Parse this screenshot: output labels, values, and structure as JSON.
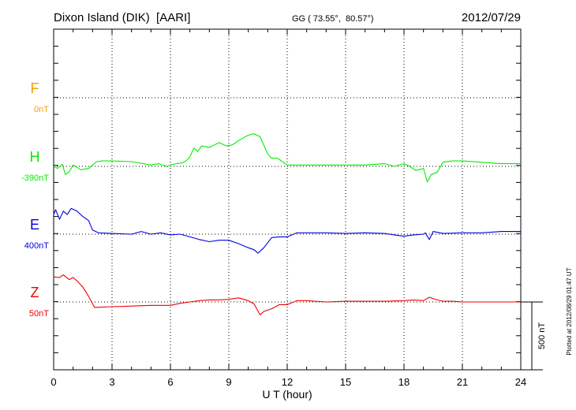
{
  "chart_data": {
    "type": "line",
    "title_left": "Dixon Island (DIK)  [AARI]",
    "title_center": "GG ( 73.55°,  80.57°)",
    "title_right": "2012/07/29",
    "xlabel": "U T (hour)",
    "xlim": [
      0,
      24
    ],
    "xticks": [
      "0",
      "3",
      "6",
      "9",
      "12",
      "15",
      "18",
      "21",
      "24"
    ],
    "grid": true,
    "scale_bar_label": "500 nT",
    "footer": "Plotted at 2012/08/29 01:47 UT",
    "series": [
      {
        "name": "F",
        "offset": "0nT",
        "color": "#f5a000",
        "x": [],
        "y": []
      },
      {
        "name": "H",
        "offset": "-390nT",
        "color": "#00ee00",
        "x": [
          0,
          0.2,
          0.45,
          0.6,
          0.8,
          1.0,
          1.4,
          1.8,
          2.2,
          2.5,
          3.0,
          4.0,
          5.0,
          5.4,
          5.8,
          6.0,
          6.3,
          6.6,
          6.8,
          7.0,
          7.2,
          7.4,
          7.6,
          8.0,
          8.5,
          8.9,
          9.2,
          9.5,
          10.0,
          10.3,
          10.6,
          11.0,
          11.2,
          11.5,
          12.0,
          12.3,
          13.0,
          14.0,
          15.0,
          16.0,
          17.0,
          17.5,
          18.0,
          18.3,
          18.6,
          19.0,
          19.2,
          19.4,
          19.7,
          20.0,
          20.5,
          21.0,
          22.0,
          23.0,
          24.0
        ],
        "y": [
          0,
          -15,
          15,
          -60,
          -40,
          10,
          -25,
          -15,
          35,
          40,
          40,
          35,
          10,
          20,
          0,
          10,
          20,
          25,
          40,
          70,
          135,
          110,
          150,
          140,
          175,
          150,
          160,
          190,
          230,
          240,
          220,
          90,
          60,
          60,
          10,
          10,
          10,
          10,
          10,
          10,
          20,
          0,
          20,
          0,
          -30,
          -15,
          -115,
          -60,
          -45,
          30,
          40,
          40,
          30,
          20,
          20
        ]
      },
      {
        "name": "E",
        "offset": "400nT",
        "color": "#0000dd",
        "x": [
          0,
          0.1,
          0.3,
          0.5,
          0.7,
          0.9,
          1.2,
          1.5,
          1.8,
          2.0,
          2.3,
          3.0,
          4.0,
          4.5,
          5.0,
          5.5,
          6.0,
          6.5,
          7.0,
          7.5,
          8.0,
          8.5,
          9.0,
          9.5,
          10.0,
          10.3,
          10.5,
          10.8,
          11.2,
          11.6,
          12.0,
          12.5,
          13.0,
          14.0,
          15.0,
          16.0,
          17.0,
          17.5,
          18.0,
          18.5,
          19.0,
          19.1,
          19.3,
          19.5,
          20.0,
          21.0,
          22.0,
          23.0,
          24.0
        ],
        "y": [
          145,
          180,
          110,
          170,
          145,
          190,
          170,
          130,
          100,
          30,
          10,
          5,
          0,
          20,
          0,
          10,
          -5,
          0,
          -20,
          -40,
          -55,
          -45,
          -45,
          -70,
          -100,
          -115,
          -140,
          -100,
          -25,
          -20,
          -20,
          10,
          10,
          10,
          5,
          10,
          5,
          -5,
          -15,
          -5,
          0,
          10,
          -40,
          20,
          5,
          10,
          10,
          20,
          20
        ]
      },
      {
        "name": "Z",
        "offset": "50nT",
        "color": "#ee0000",
        "x": [
          0,
          0.3,
          0.5,
          0.8,
          1.0,
          1.2,
          1.5,
          1.8,
          2.1,
          3.0,
          4.0,
          5.0,
          6.0,
          6.5,
          7.0,
          7.5,
          8.0,
          8.5,
          9.0,
          9.5,
          10.0,
          10.3,
          10.6,
          10.8,
          11.2,
          11.6,
          12.0,
          12.5,
          13.0,
          14.0,
          15.0,
          16.0,
          17.0,
          18.0,
          18.5,
          19.0,
          19.3,
          19.6,
          20.0,
          20.5,
          21.0,
          22.0,
          23.0,
          24.0
        ],
        "y": [
          185,
          180,
          200,
          165,
          180,
          155,
          110,
          40,
          -40,
          -35,
          -30,
          -25,
          -25,
          -10,
          0,
          10,
          15,
          15,
          20,
          30,
          10,
          -15,
          -95,
          -70,
          -50,
          -20,
          -20,
          10,
          10,
          0,
          5,
          5,
          5,
          10,
          15,
          10,
          35,
          20,
          5,
          5,
          0,
          0,
          0,
          0
        ]
      }
    ]
  }
}
